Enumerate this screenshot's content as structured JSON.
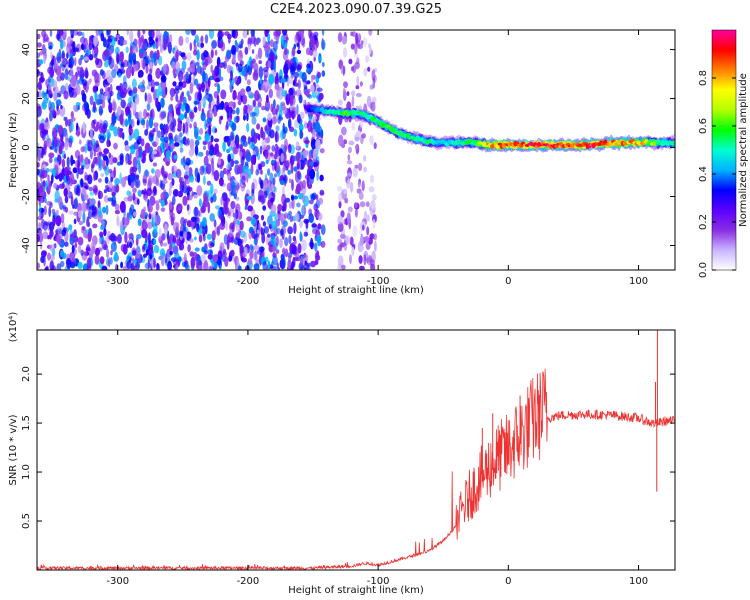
{
  "title": "C2E4.2023.090.07.39.G25",
  "colorbar": {
    "label": "Normalized spectral amplitude",
    "ticks": [
      0.0,
      0.2,
      0.4,
      0.6,
      0.8
    ],
    "tick_labels": [
      "0.0",
      "0.2",
      "0.4",
      "0.6",
      "0.8"
    ],
    "range": [
      0,
      1
    ],
    "colormap": [
      "#ffffff",
      "#c8b4ff",
      "#8a2be2",
      "#5a00ff",
      "#0000ff",
      "#00b4ff",
      "#00ffd0",
      "#00ff00",
      "#b4ff00",
      "#ffff00",
      "#ff8000",
      "#ff0000",
      "#ff00a0"
    ]
  },
  "chart_data": [
    {
      "type": "heatmap",
      "name": "spectrogram",
      "xlabel": "Height of straight line (km)",
      "ylabel": "Frequency (Hz)",
      "xlim": [
        -362,
        128
      ],
      "ylim": [
        -50,
        48
      ],
      "xticks": [
        -300,
        -200,
        -100,
        0,
        100
      ],
      "xtick_labels": [
        "-300",
        "-200",
        "-100",
        "0",
        "100"
      ],
      "yticks": [
        -40,
        -20,
        0,
        20,
        40
      ],
      "ytick_labels": [
        "-40",
        "-20",
        "0",
        "20",
        "40"
      ],
      "noise_region": {
        "x": [
          -362,
          -142
        ],
        "amplitude": 0.3
      },
      "noise_region_2": {
        "x": [
          -130,
          -102
        ],
        "amplitude": 0.15
      },
      "signal_track": {
        "x": [
          -155,
          -140,
          -125,
          -115,
          -105,
          -95,
          -85,
          -75,
          -65,
          -55,
          -45,
          -35,
          -25,
          -15,
          0,
          20,
          40,
          60,
          80,
          100,
          115,
          128
        ],
        "y": [
          16,
          15,
          14,
          14,
          12,
          9,
          6,
          4,
          3,
          2,
          2,
          2,
          2,
          1,
          1,
          1,
          1,
          1,
          2,
          2,
          2,
          2
        ],
        "amplitude": [
          0.3,
          0.5,
          0.6,
          0.55,
          0.55,
          0.6,
          0.6,
          0.55,
          0.55,
          0.5,
          0.5,
          0.55,
          0.6,
          0.85,
          0.9,
          0.95,
          0.95,
          0.95,
          0.9,
          0.85,
          0.6,
          0.5
        ]
      }
    },
    {
      "type": "line",
      "name": "snr",
      "xlabel": "Height of straight line (km)",
      "ylabel": "SNR (10 * v/v)",
      "scale_label": "(x10⁴)",
      "xlim": [
        -362,
        128
      ],
      "ylim": [
        0,
        2.45
      ],
      "xticks": [
        -300,
        -200,
        -100,
        0,
        100
      ],
      "xtick_labels": [
        "-300",
        "-200",
        "-100",
        "0",
        "100"
      ],
      "yticks": [
        0.5,
        1.0,
        1.5,
        2.0
      ],
      "ytick_labels": [
        "0.5",
        "1.0",
        "1.5",
        "2.0"
      ],
      "color": "#ee3333",
      "envelope": {
        "x": [
          -362,
          -150,
          -120,
          -110,
          -100,
          -80,
          -60,
          -50,
          -40,
          -30,
          -20,
          -10,
          0,
          10,
          20,
          30,
          40,
          60,
          80,
          100,
          110,
          115,
          120,
          128
        ],
        "y": [
          0.02,
          0.02,
          0.04,
          0.07,
          0.05,
          0.12,
          0.2,
          0.3,
          0.45,
          0.7,
          0.9,
          1.05,
          1.15,
          1.3,
          1.45,
          1.55,
          1.58,
          1.59,
          1.58,
          1.55,
          1.5,
          1.5,
          1.52,
          1.52
        ]
      },
      "spikes": [
        {
          "x": -30,
          "y": 0.9
        },
        {
          "x": -20,
          "y": 1.45
        },
        {
          "x": -12,
          "y": 1.6
        },
        {
          "x": 9,
          "y": 1.78
        },
        {
          "x": 113,
          "y": 1.92
        },
        {
          "x": 114,
          "y": 0.8
        },
        {
          "x": 114.5,
          "y": 2.45
        }
      ]
    }
  ]
}
